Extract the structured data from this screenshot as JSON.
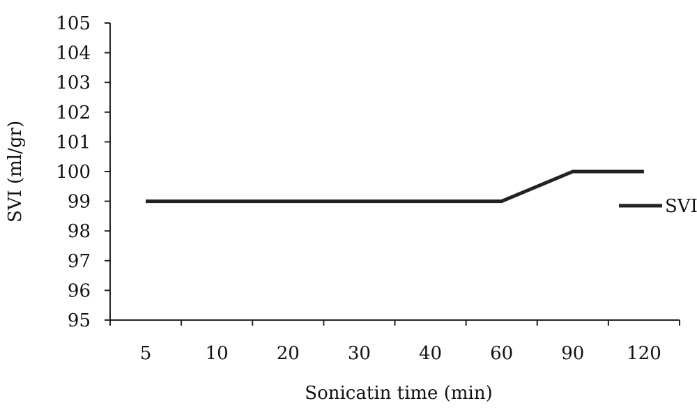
{
  "chart_data": {
    "type": "line",
    "categories": [
      "5",
      "10",
      "20",
      "30",
      "40",
      "60",
      "90",
      "120"
    ],
    "series": [
      {
        "name": "SVI",
        "values": [
          99,
          99,
          99,
          99,
          99,
          99,
          100,
          100
        ],
        "color": "#222222"
      }
    ],
    "title": "",
    "xlabel": "Sonicatin time (min)",
    "ylabel": "SVI (ml/gr)",
    "ylim": [
      95,
      105
    ],
    "yticks": [
      "95",
      "96",
      "97",
      "98",
      "99",
      "100",
      "101",
      "102",
      "103",
      "104",
      "105"
    ],
    "grid": false,
    "legend": "right"
  }
}
